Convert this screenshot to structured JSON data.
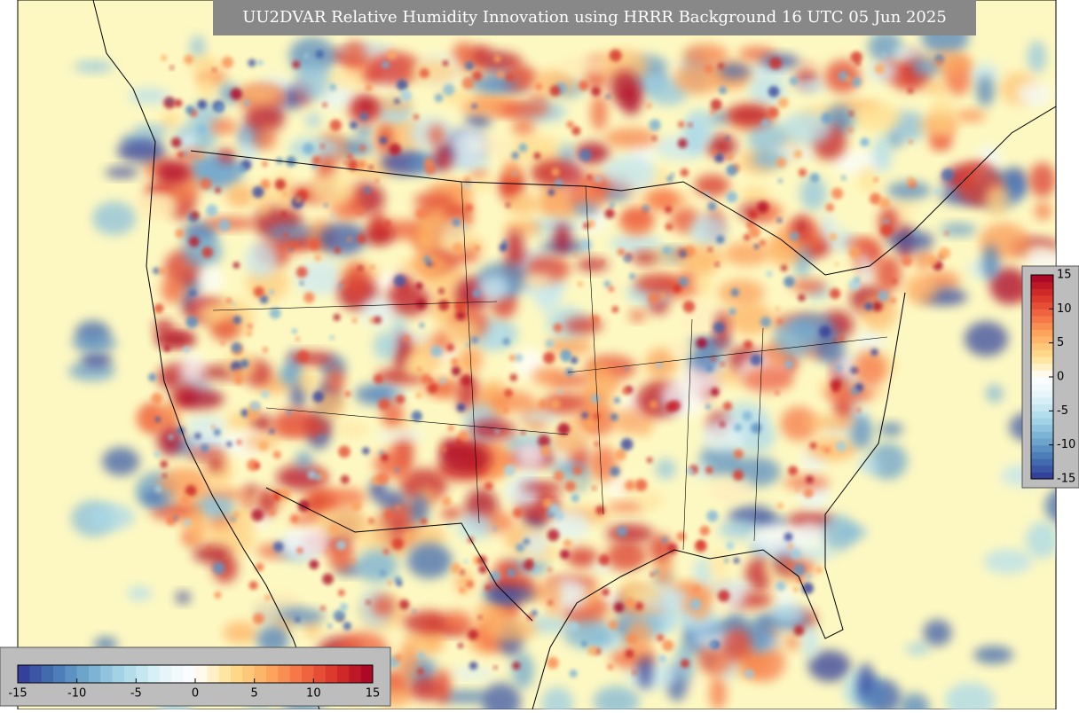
{
  "title": "UU2DVAR Relative Humidity Innovation using HRRR Background 16 UTC 05 Jun 2025",
  "colorbar": {
    "vlim": [
      -15,
      15
    ],
    "ticks": [
      -15,
      -10,
      -5,
      0,
      5,
      10,
      15
    ],
    "colors": [
      "#313695",
      "#4575b4",
      "#74add1",
      "#abd9e9",
      "#e0f3f8",
      "#ffffff",
      "#fee090",
      "#fdae61",
      "#f46d43",
      "#d73027",
      "#a50026"
    ]
  }
}
